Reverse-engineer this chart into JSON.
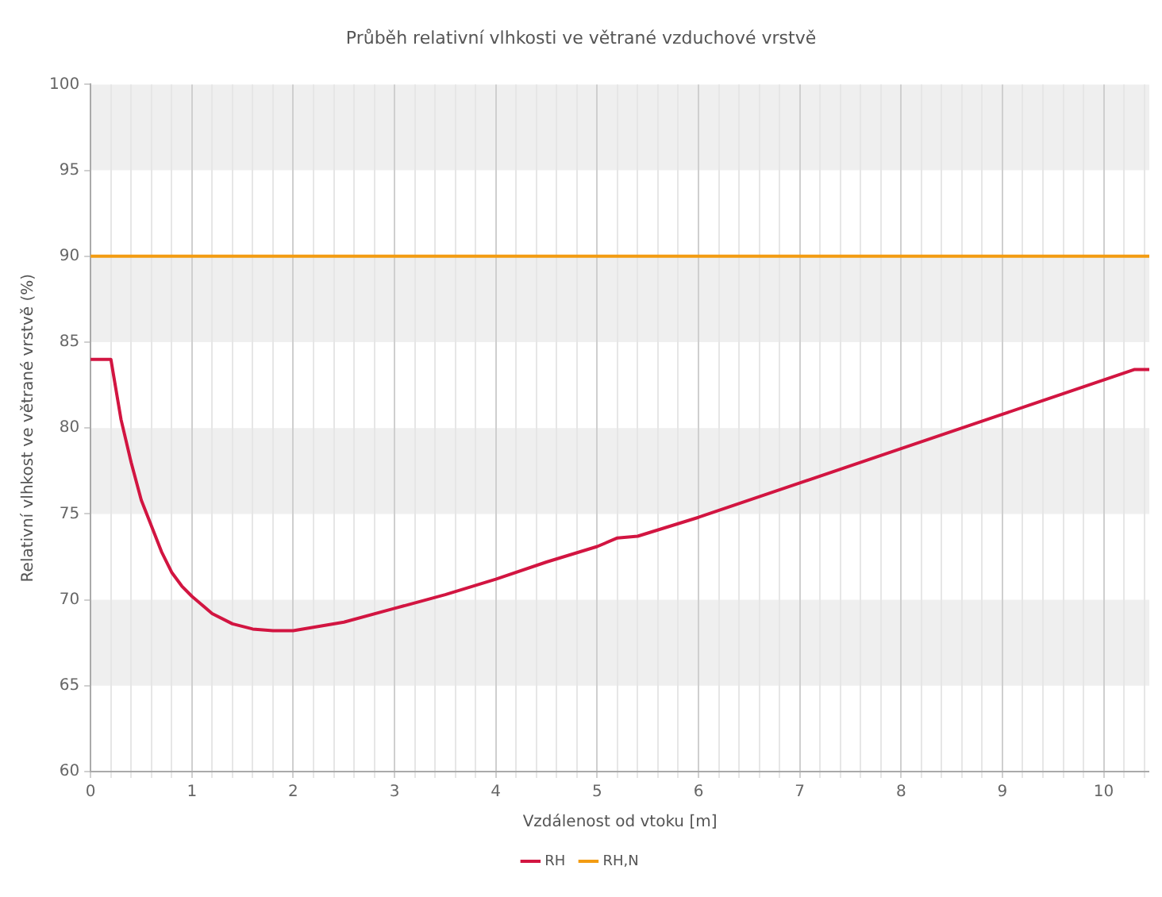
{
  "chart_data": {
    "type": "line",
    "title": "Průběh relativní vlhkosti ve větrané vzduchové vrstvě",
    "xlabel": "Vzdálenost od vtoku [m]",
    "ylabel": "Relativní vlhkost ve větrané vrstvě (%)",
    "xlim": [
      0,
      10.45
    ],
    "xticks": [
      0,
      {
        "value": 0.2,
        "label": null
      },
      {
        "value": 0.4,
        "label": null
      },
      {
        "value": 0.6,
        "label": null
      },
      {
        "value": 0.8,
        "label": null
      },
      1,
      {
        "value": 1.2,
        "label": null
      },
      {
        "value": 1.4,
        "label": null
      },
      {
        "value": 1.6,
        "label": null
      },
      {
        "value": 1.8,
        "label": null
      },
      2,
      {
        "value": 2.2,
        "label": null
      },
      {
        "value": 2.4,
        "label": null
      },
      {
        "value": 2.6,
        "label": null
      },
      {
        "value": 2.8,
        "label": null
      },
      3,
      {
        "value": 3.2,
        "label": null
      },
      {
        "value": 3.4,
        "label": null
      },
      {
        "value": 3.6,
        "label": null
      },
      {
        "value": 3.8,
        "label": null
      },
      4,
      {
        "value": 4.2,
        "label": null
      },
      {
        "value": 4.4,
        "label": null
      },
      {
        "value": 4.6,
        "label": null
      },
      {
        "value": 4.8,
        "label": null
      },
      5,
      {
        "value": 5.2,
        "label": null
      },
      {
        "value": 5.4,
        "label": null
      },
      {
        "value": 5.6,
        "label": null
      },
      {
        "value": 5.8,
        "label": null
      },
      6,
      {
        "value": 6.2,
        "label": null
      },
      {
        "value": 6.4,
        "label": null
      },
      {
        "value": 6.6,
        "label": null
      },
      {
        "value": 6.8,
        "label": null
      },
      7,
      {
        "value": 7.2,
        "label": null
      },
      {
        "value": 7.4,
        "label": null
      },
      {
        "value": 7.6,
        "label": null
      },
      {
        "value": 7.8,
        "label": null
      },
      8,
      {
        "value": 8.2,
        "label": null
      },
      {
        "value": 8.4,
        "label": null
      },
      {
        "value": 8.6,
        "label": null
      },
      {
        "value": 8.8,
        "label": null
      },
      9,
      {
        "value": 9.2,
        "label": null
      },
      {
        "value": 9.4,
        "label": null
      },
      {
        "value": 9.6,
        "label": null
      },
      {
        "value": 9.8,
        "label": null
      },
      10,
      {
        "value": 10.2,
        "label": null
      },
      {
        "value": 10.4,
        "label": null
      }
    ],
    "ylim": [
      60,
      100
    ],
    "yticks": [
      60,
      65,
      70,
      75,
      80,
      85,
      90,
      95,
      100
    ],
    "grid": "x",
    "legend": "bottom",
    "marker": "none",
    "line_style": "solid",
    "bands": [
      {
        "axis": "y",
        "from": 65,
        "to": 70,
        "color": "#efefef"
      },
      {
        "axis": "y",
        "from": 75,
        "to": 80,
        "color": "#efefef"
      },
      {
        "axis": "y",
        "from": 85,
        "to": 90,
        "color": "#efefef"
      },
      {
        "axis": "y",
        "from": 95,
        "to": 100,
        "color": "#efefef"
      }
    ],
    "series": [
      {
        "name": "RH",
        "color": "#d21541",
        "x": [
          0,
          0.2,
          0.3,
          0.4,
          0.5,
          0.6,
          0.7,
          0.8,
          0.9,
          1.0,
          1.2,
          1.4,
          1.6,
          1.8,
          2.0,
          2.5,
          3.0,
          3.5,
          4.0,
          4.5,
          5.0,
          5.2,
          5.4,
          6.0,
          7.0,
          8.0,
          9.0,
          10.0,
          10.3,
          10.45
        ],
        "values": [
          84,
          84,
          80.5,
          78,
          75.8,
          74.3,
          72.8,
          71.6,
          70.8,
          70.2,
          69.2,
          68.6,
          68.3,
          68.2,
          68.2,
          68.7,
          69.5,
          70.3,
          71.2,
          72.2,
          73.1,
          73.6,
          73.7,
          74.8,
          76.8,
          78.8,
          80.8,
          82.8,
          83.4,
          83.4
        ]
      },
      {
        "name": "RH,N",
        "color": "#f39c12",
        "x": [
          0,
          10.45
        ],
        "values": [
          90,
          90
        ]
      }
    ]
  }
}
